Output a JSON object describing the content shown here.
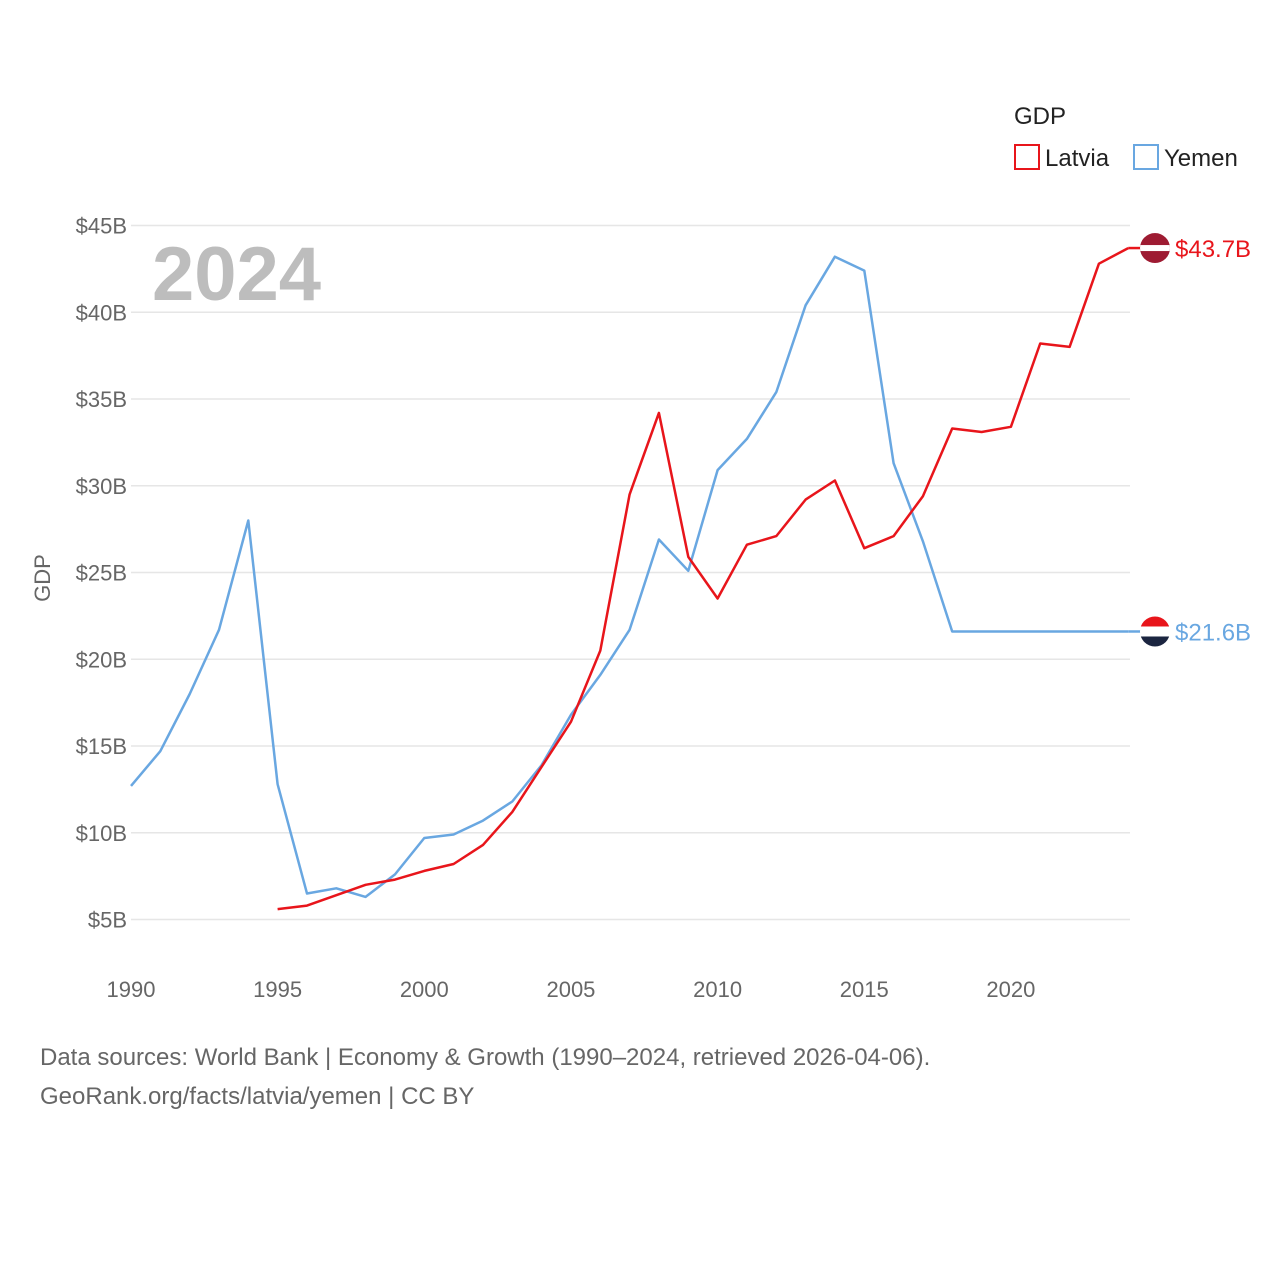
{
  "chart_data": {
    "type": "line",
    "title": "",
    "xlabel": "",
    "ylabel": "GDP",
    "year_label": "2024",
    "legend_title": "GDP",
    "ylim": [
      2,
      46
    ],
    "xlim": [
      1990,
      2024
    ],
    "y_ticks": [
      5,
      10,
      15,
      20,
      25,
      30,
      35,
      40,
      45
    ],
    "y_tick_labels": [
      "$5B",
      "$10B",
      "$15B",
      "$20B",
      "$25B",
      "$30B",
      "$35B",
      "$40B",
      "$45B"
    ],
    "x_ticks": [
      1990,
      1995,
      2000,
      2005,
      2010,
      2015,
      2020
    ],
    "x_tick_labels": [
      "1990",
      "1995",
      "2000",
      "2005",
      "2010",
      "2015",
      "2020"
    ],
    "series": [
      {
        "name": "Latvia",
        "color": "#e8151b",
        "end_label": "$43.7B",
        "flag": "latvia",
        "x": [
          1995,
          1996,
          1997,
          1998,
          1999,
          2000,
          2001,
          2002,
          2003,
          2004,
          2005,
          2006,
          2007,
          2008,
          2009,
          2010,
          2011,
          2012,
          2013,
          2014,
          2015,
          2016,
          2017,
          2018,
          2019,
          2020,
          2021,
          2022,
          2023,
          2024
        ],
        "values": [
          5.6,
          5.8,
          6.4,
          7.0,
          7.3,
          7.8,
          8.2,
          9.3,
          11.2,
          13.8,
          16.4,
          20.5,
          29.5,
          34.2,
          25.9,
          23.5,
          26.6,
          27.1,
          29.2,
          30.3,
          26.4,
          27.1,
          29.4,
          33.3,
          33.1,
          33.4,
          38.2,
          38.0,
          42.8,
          43.7
        ]
      },
      {
        "name": "Yemen",
        "color": "#69a7e1",
        "end_label": "$21.6B",
        "flag": "yemen",
        "x": [
          1990,
          1991,
          1992,
          1993,
          1994,
          1995,
          1996,
          1997,
          1998,
          1999,
          2000,
          2001,
          2002,
          2003,
          2004,
          2005,
          2006,
          2007,
          2008,
          2009,
          2010,
          2011,
          2012,
          2013,
          2014,
          2015,
          2016,
          2017,
          2018,
          2019,
          2020,
          2021,
          2022,
          2023,
          2024
        ],
        "values": [
          12.7,
          14.7,
          18.0,
          21.7,
          28.0,
          12.8,
          6.5,
          6.8,
          6.3,
          7.6,
          9.7,
          9.9,
          10.7,
          11.8,
          13.9,
          16.8,
          19.1,
          21.7,
          26.9,
          25.1,
          30.9,
          32.7,
          35.4,
          40.4,
          43.2,
          42.4,
          31.3,
          26.8,
          21.6,
          21.6,
          21.6,
          21.6,
          21.6,
          21.6,
          21.6
        ]
      }
    ]
  },
  "footer": {
    "line1": "Data sources: World Bank | Economy & Growth (1990–2024, retrieved 2026-04-06).",
    "line2": "GeoRank.org/facts/latvia/yemen | CC BY"
  }
}
